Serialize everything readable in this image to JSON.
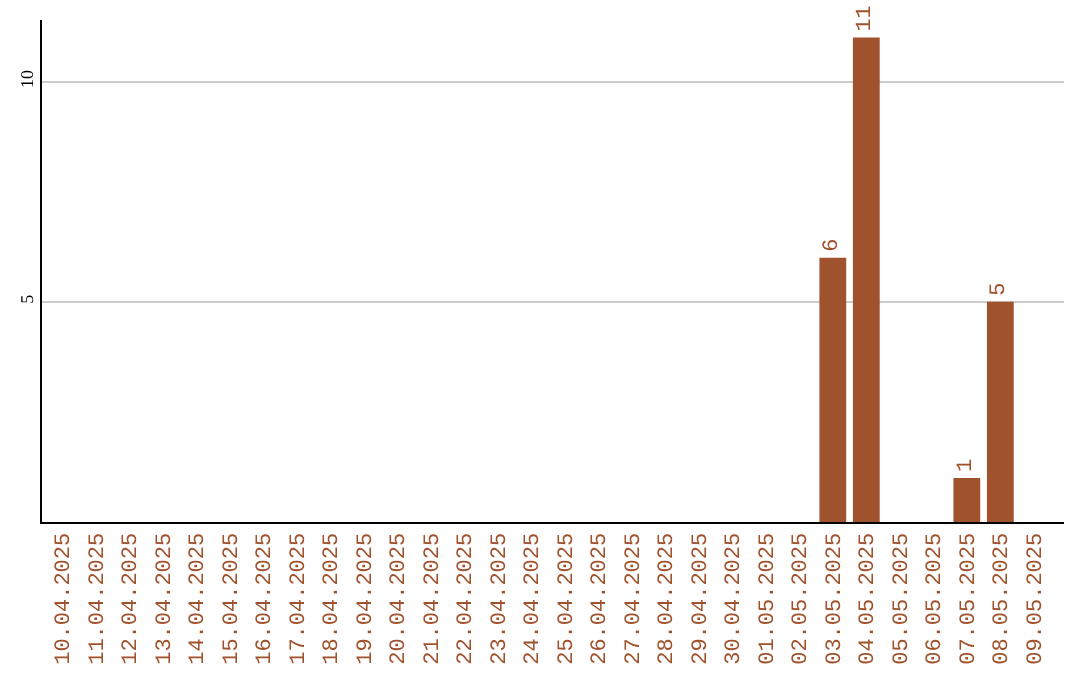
{
  "chart_data": {
    "type": "bar",
    "categories": [
      "10.04.2025",
      "11.04.2025",
      "12.04.2025",
      "13.04.2025",
      "14.04.2025",
      "15.04.2025",
      "16.04.2025",
      "17.04.2025",
      "18.04.2025",
      "19.04.2025",
      "20.04.2025",
      "21.04.2025",
      "22.04.2025",
      "23.04.2025",
      "24.04.2025",
      "25.04.2025",
      "26.04.2025",
      "27.04.2025",
      "28.04.2025",
      "29.04.2025",
      "30.04.2025",
      "01.05.2025",
      "02.05.2025",
      "03.05.2025",
      "04.05.2025",
      "05.05.2025",
      "06.05.2025",
      "07.05.2025",
      "08.05.2025",
      "09.05.2025"
    ],
    "values": [
      0,
      0,
      0,
      0,
      0,
      0,
      0,
      0,
      0,
      0,
      0,
      0,
      0,
      0,
      0,
      0,
      0,
      0,
      0,
      0,
      0,
      0,
      0,
      6,
      11,
      0,
      0,
      1,
      5,
      0
    ],
    "value_labels": [
      null,
      null,
      null,
      null,
      null,
      null,
      null,
      null,
      null,
      null,
      null,
      null,
      null,
      null,
      null,
      null,
      null,
      null,
      null,
      null,
      null,
      null,
      null,
      "6",
      "11",
      null,
      null,
      "1",
      "5",
      null
    ],
    "color": "#a0522d",
    "ylim": [
      0,
      11.4
    ],
    "yticks": [
      5,
      10
    ],
    "grid": "y",
    "legend": false
  }
}
